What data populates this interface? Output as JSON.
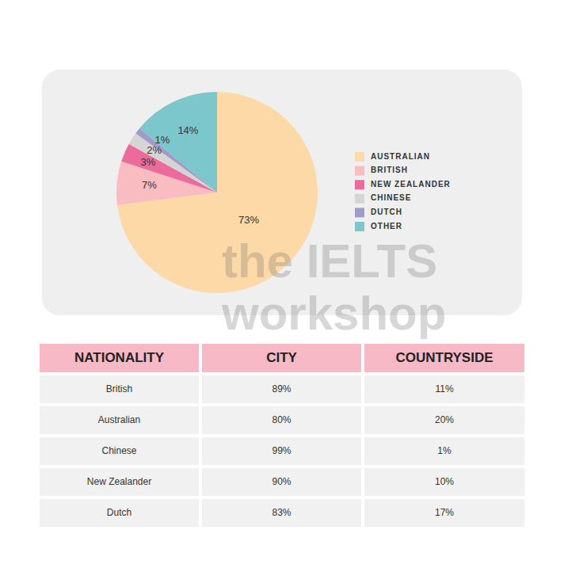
{
  "chart_data": {
    "type": "pie",
    "categories": [
      "AUSTRALIAN",
      "BRITISH",
      "NEW ZEALANDER",
      "CHINESE",
      "DUTCH",
      "OTHER"
    ],
    "values": [
      73,
      7,
      3,
      2,
      1,
      14
    ],
    "value_labels": [
      "73%",
      "7%",
      "3%",
      "2%",
      "1%",
      "14%"
    ],
    "colors": [
      "#fcd9a6",
      "#f8bcc1",
      "#ec6b9d",
      "#d5d5d5",
      "#a19bc9",
      "#7bc7cb"
    ],
    "legend": "right",
    "data_labels": true
  },
  "table": {
    "header": [
      "NATIONALITY",
      "CITY",
      "COUNTRYSIDE"
    ],
    "rows": [
      [
        "British",
        "89%",
        "11%"
      ],
      [
        "Australian",
        "80%",
        "20%"
      ],
      [
        "Chinese",
        "99%",
        "1%"
      ],
      [
        "New Zealander",
        "90%",
        "10%"
      ],
      [
        "Dutch",
        "83%",
        "17%"
      ]
    ]
  },
  "watermark": [
    "the IELTS",
    "workshop"
  ]
}
